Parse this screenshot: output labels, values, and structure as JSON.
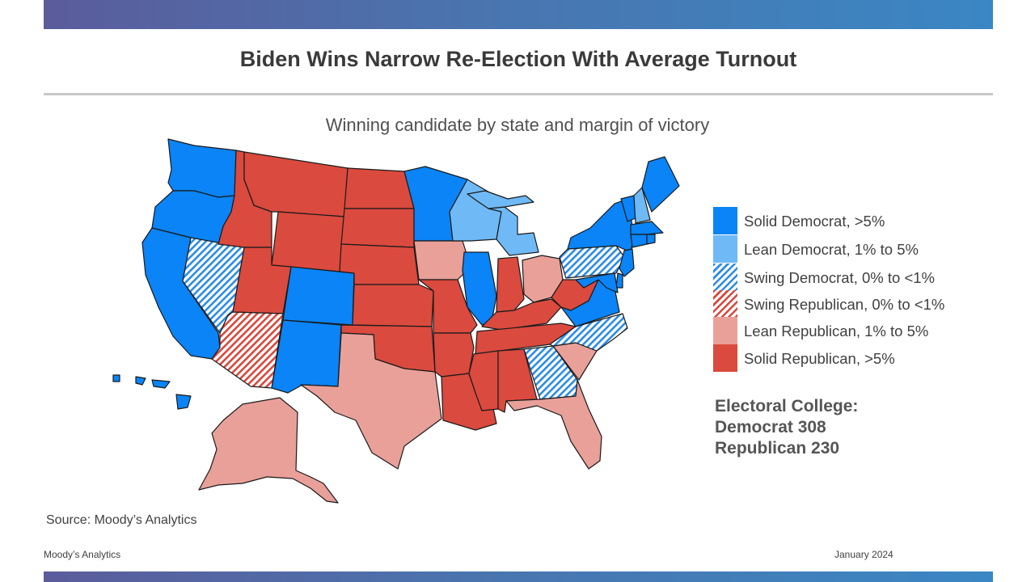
{
  "header": {
    "title": "Biden Wins Narrow Re-Election With Average Turnout"
  },
  "map": {
    "subtitle": "Winning candidate by state and margin of victory"
  },
  "colors": {
    "solid_dem": "#0a84f6",
    "lean_dem": "#6fbaf6",
    "swing_dem_stripe": "#2a8be8",
    "swing_rep_stripe": "#d9483c",
    "lean_rep": "#e9a099",
    "solid_rep": "#da4a3e",
    "border": "#1a1a1a"
  },
  "legend": {
    "items": [
      {
        "key": "solid_dem",
        "label": "Solid Democrat, >5%"
      },
      {
        "key": "lean_dem",
        "label": "Lean Democrat, 1% to 5%"
      },
      {
        "key": "swing_dem",
        "label": "Swing Democrat, 0% to <1%"
      },
      {
        "key": "swing_rep",
        "label": "Swing Republican,  0% to <1%"
      },
      {
        "key": "lean_rep",
        "label": "Lean Republican,  1% to 5%"
      },
      {
        "key": "solid_rep",
        "label": "Solid Republican,  >5%"
      }
    ]
  },
  "electoral_college": {
    "heading": "Electoral College:",
    "democrat": "Democrat 308",
    "republican": "Republican 230"
  },
  "source": "Source: Moody’s Analytics",
  "footer": {
    "left": "Moody’s Analytics",
    "right": "January  2024"
  },
  "states": [
    {
      "name": "WA",
      "rating": "solid_dem"
    },
    {
      "name": "OR",
      "rating": "solid_dem"
    },
    {
      "name": "CA",
      "rating": "solid_dem"
    },
    {
      "name": "NV",
      "rating": "swing_dem"
    },
    {
      "name": "ID",
      "rating": "solid_rep"
    },
    {
      "name": "MT",
      "rating": "solid_rep"
    },
    {
      "name": "WY",
      "rating": "solid_rep"
    },
    {
      "name": "UT",
      "rating": "solid_rep"
    },
    {
      "name": "AZ",
      "rating": "swing_rep"
    },
    {
      "name": "CO",
      "rating": "solid_dem"
    },
    {
      "name": "NM",
      "rating": "solid_dem"
    },
    {
      "name": "ND",
      "rating": "solid_rep"
    },
    {
      "name": "SD",
      "rating": "solid_rep"
    },
    {
      "name": "NE",
      "rating": "solid_rep"
    },
    {
      "name": "KS",
      "rating": "solid_rep"
    },
    {
      "name": "OK",
      "rating": "solid_rep"
    },
    {
      "name": "TX",
      "rating": "lean_rep"
    },
    {
      "name": "MN",
      "rating": "solid_dem"
    },
    {
      "name": "IA",
      "rating": "lean_rep"
    },
    {
      "name": "MO",
      "rating": "solid_rep"
    },
    {
      "name": "AR",
      "rating": "solid_rep"
    },
    {
      "name": "LA",
      "rating": "solid_rep"
    },
    {
      "name": "WI",
      "rating": "lean_dem"
    },
    {
      "name": "IL",
      "rating": "solid_dem"
    },
    {
      "name": "MI",
      "rating": "lean_dem"
    },
    {
      "name": "IN",
      "rating": "solid_rep"
    },
    {
      "name": "OH",
      "rating": "lean_rep"
    },
    {
      "name": "KY",
      "rating": "solid_rep"
    },
    {
      "name": "TN",
      "rating": "solid_rep"
    },
    {
      "name": "MS",
      "rating": "solid_rep"
    },
    {
      "name": "AL",
      "rating": "solid_rep"
    },
    {
      "name": "GA",
      "rating": "swing_dem"
    },
    {
      "name": "FL",
      "rating": "lean_rep"
    },
    {
      "name": "SC",
      "rating": "lean_rep"
    },
    {
      "name": "NC",
      "rating": "swing_dem"
    },
    {
      "name": "VA",
      "rating": "solid_dem"
    },
    {
      "name": "WV",
      "rating": "solid_rep"
    },
    {
      "name": "PA",
      "rating": "swing_dem"
    },
    {
      "name": "NY",
      "rating": "solid_dem"
    },
    {
      "name": "VT",
      "rating": "solid_dem"
    },
    {
      "name": "NH",
      "rating": "lean_dem"
    },
    {
      "name": "ME",
      "rating": "solid_dem"
    },
    {
      "name": "MA",
      "rating": "solid_dem"
    },
    {
      "name": "CT",
      "rating": "solid_dem"
    },
    {
      "name": "RI",
      "rating": "solid_dem"
    },
    {
      "name": "NJ",
      "rating": "solid_dem"
    },
    {
      "name": "DE",
      "rating": "solid_dem"
    },
    {
      "name": "MD",
      "rating": "solid_dem"
    },
    {
      "name": "AK",
      "rating": "lean_rep"
    },
    {
      "name": "HI",
      "rating": "solid_dem"
    }
  ]
}
